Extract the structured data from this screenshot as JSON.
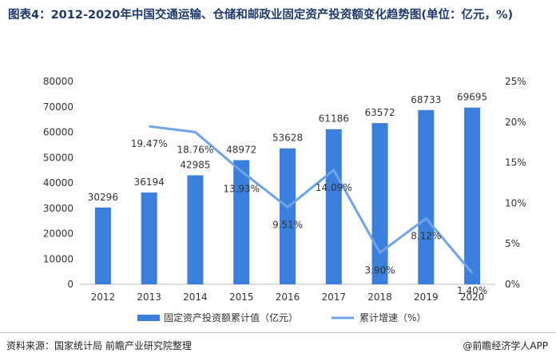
{
  "title": "图表4：2012-2020年中国交通运输、仓储和邮政业固定资产投资额变化趋势图(单位：亿元，%)",
  "source": "资料来源：国家统计局 前瞻产业研究院整理",
  "brand": "@前瞻经济学人APP",
  "colors": {
    "bar": "#3a7fdc",
    "line": "#6fa3e8",
    "title": "#1f3a6b"
  },
  "chart_data": {
    "type": "bar+line",
    "categories": [
      "2012",
      "2013",
      "2014",
      "2015",
      "2016",
      "2017",
      "2018",
      "2019",
      "2020"
    ],
    "series": [
      {
        "name": "固定资产投资额累计值（亿元）",
        "type": "bar",
        "axis": "left",
        "values": [
          30296,
          36194,
          42985,
          48972,
          53628,
          61186,
          63572,
          68733,
          69695
        ],
        "labels": [
          "30296",
          "36194",
          "42985",
          "48972",
          "53628",
          "61186",
          "63572",
          "68733",
          "69695"
        ]
      },
      {
        "name": "累计增速（%）",
        "type": "line",
        "axis": "right",
        "values": [
          null,
          19.47,
          18.76,
          13.93,
          9.51,
          14.09,
          3.9,
          8.12,
          1.4
        ],
        "labels": [
          "",
          "19.47%",
          "18.76%",
          "13.93%",
          "9.51%",
          "14.09%",
          "3.90%",
          "8.12%",
          "1.40%"
        ]
      }
    ],
    "y_left": {
      "min": 0,
      "max": 80000,
      "ticks": [
        "0",
        "10000",
        "20000",
        "30000",
        "40000",
        "50000",
        "60000",
        "70000",
        "80000"
      ]
    },
    "y_right": {
      "min": 0,
      "max": 25,
      "ticks": [
        "0%",
        "5%",
        "10%",
        "15%",
        "20%",
        "25%"
      ]
    },
    "legend": [
      "固定资产投资额累计值（亿元）",
      "累计增速（%）"
    ]
  }
}
